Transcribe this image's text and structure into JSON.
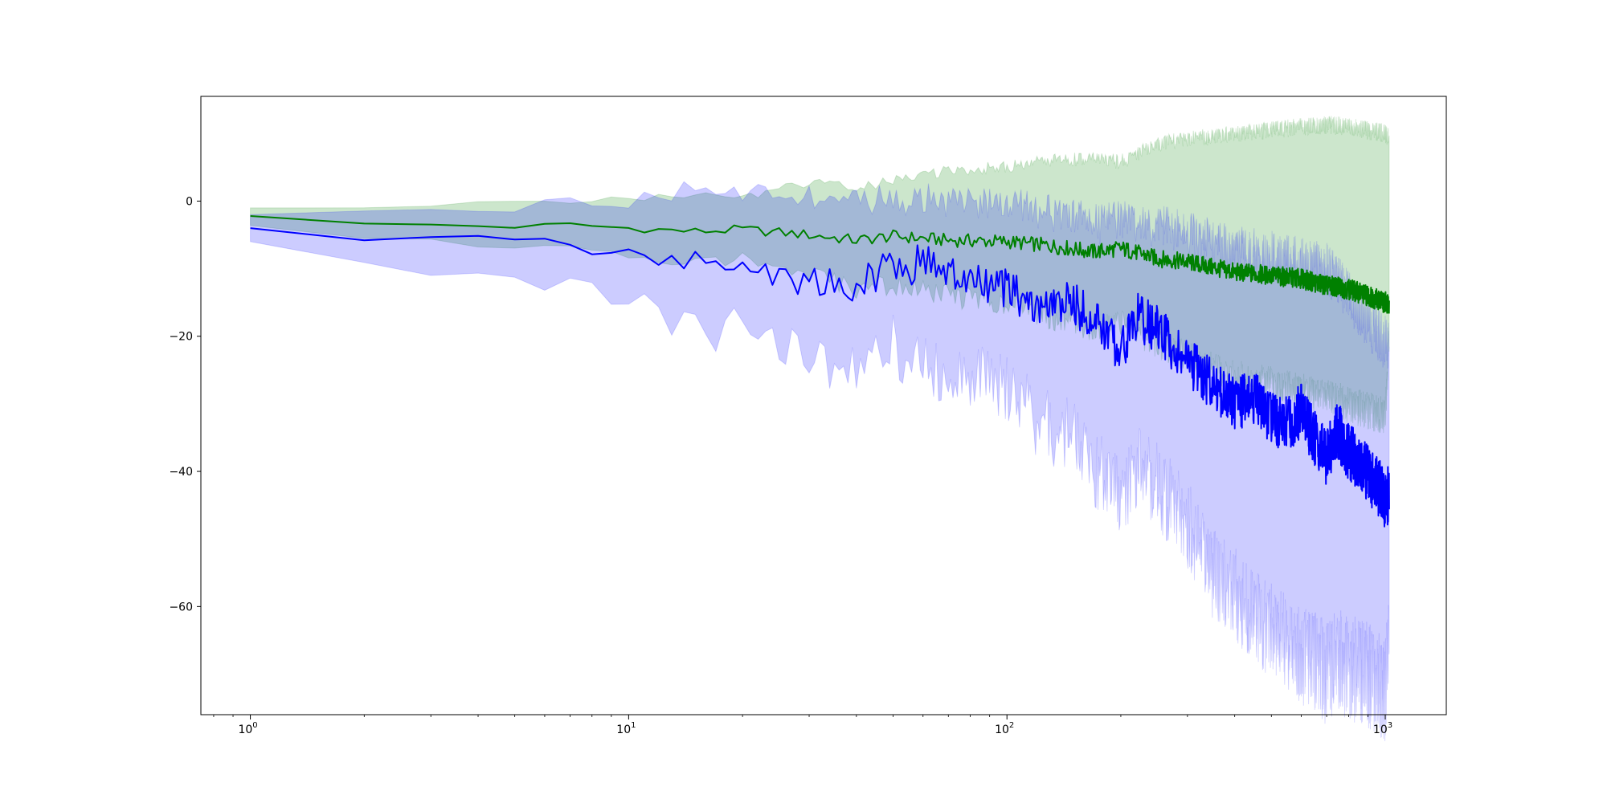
{
  "chart_data": {
    "type": "line",
    "title": "",
    "xlabel": "",
    "ylabel": "",
    "xscale": "log",
    "xlim": [
      0.74,
      1450
    ],
    "ylim": [
      -76,
      15.5
    ],
    "grid": false,
    "legend": "none",
    "x_ticks": [
      {
        "value": 1,
        "base": "10",
        "exp": "0"
      },
      {
        "value": 10,
        "base": "10",
        "exp": "1"
      },
      {
        "value": 100,
        "base": "10",
        "exp": "2"
      },
      {
        "value": 1000,
        "base": "10",
        "exp": "3"
      }
    ],
    "y_ticks": [
      {
        "value": 0,
        "label": "0"
      },
      {
        "value": -20,
        "label": "−20"
      },
      {
        "value": -40,
        "label": "−40"
      },
      {
        "value": -60,
        "label": "−60"
      }
    ],
    "series": [
      {
        "color": "#008000",
        "band_color": "#008000",
        "band_opacity": 0.2,
        "x": [
          1,
          2,
          3,
          5,
          7,
          10,
          15,
          20,
          30,
          40,
          50,
          70,
          100,
          130,
          170,
          200,
          250,
          300,
          400,
          500,
          600,
          700,
          800,
          900,
          1000,
          1024
        ],
        "mean": [
          -2.2,
          -3.4,
          -3.5,
          -3.8,
          -3.5,
          -4.0,
          -4.5,
          -4.2,
          -5.0,
          -5.8,
          -5.2,
          -5.8,
          -6.0,
          -6.6,
          -7.5,
          -7.0,
          -8.5,
          -9.0,
          -10.5,
          -11.0,
          -11.5,
          -12.5,
          -13.0,
          -14.0,
          -15.0,
          -15.0
        ],
        "upper": [
          -1.0,
          -1.1,
          -0.8,
          0.2,
          0.0,
          0.4,
          0.8,
          0.5,
          2.8,
          1.8,
          3.0,
          4.5,
          5.0,
          6.0,
          6.2,
          5.8,
          8.5,
          9.2,
          10.0,
          10.5,
          11.0,
          11.3,
          11.0,
          10.5,
          10.0,
          9.5
        ],
        "lower": [
          -3.6,
          -5.5,
          -6.0,
          -7.5,
          -6.5,
          -7.8,
          -9.0,
          -8.5,
          -11.0,
          -13.0,
          -12.5,
          -14.0,
          -15.0,
          -17.0,
          -19.0,
          -18.0,
          -21.0,
          -23.0,
          -26.0,
          -27.0,
          -28.0,
          -29.0,
          -30.0,
          -31.0,
          -32.0,
          -20.0
        ]
      },
      {
        "color": "#0000ff",
        "band_color": "#0000ff",
        "band_opacity": 0.2,
        "x": [
          1,
          2,
          3,
          5,
          7,
          10,
          12,
          15,
          17,
          20,
          25,
          30,
          40,
          45,
          50,
          55,
          60,
          70,
          80,
          100,
          120,
          150,
          180,
          200,
          220,
          250,
          300,
          350,
          400,
          450,
          500,
          550,
          600,
          650,
          700,
          750,
          800,
          900,
          1000,
          1024
        ],
        "mean": [
          -4.0,
          -5.5,
          -5.6,
          -5.7,
          -6.5,
          -7.5,
          -8.8,
          -9.0,
          -8.8,
          -9.5,
          -11.0,
          -12.0,
          -12.5,
          -11.0,
          -8.5,
          -10.5,
          -8.0,
          -11.0,
          -12.0,
          -13.0,
          -16.0,
          -15.0,
          -19.0,
          -22.0,
          -17.0,
          -19.0,
          -24.0,
          -27.0,
          -30.0,
          -29.0,
          -32.0,
          -33.0,
          -31.0,
          -35.0,
          -38.0,
          -34.0,
          -37.0,
          -40.0,
          -44.0,
          -43.0
        ],
        "upper": [
          -2.0,
          -1.5,
          -1.0,
          -0.8,
          -0.4,
          0.0,
          1.0,
          1.8,
          2.5,
          0.5,
          1.8,
          0.5,
          0.5,
          0.0,
          0.8,
          -0.5,
          0.5,
          -0.2,
          0.0,
          -0.5,
          -1.5,
          -2.5,
          -3.5,
          -2.5,
          -4.0,
          -3.5,
          -4.5,
          -6.0,
          -7.0,
          -7.5,
          -8.0,
          -8.5,
          -9.0,
          -9.5,
          -10.0,
          -12.0,
          -14.0,
          -18.0,
          -21.0,
          -22.0
        ],
        "lower": [
          -6.0,
          -9.5,
          -10.5,
          -12.0,
          -13.5,
          -15.0,
          -17.0,
          -19.0,
          -19.5,
          -19.0,
          -22.0,
          -23.5,
          -24.0,
          -23.0,
          -20.0,
          -27.0,
          -22.0,
          -28.0,
          -26.0,
          -27.0,
          -33.0,
          -35.0,
          -41.0,
          -44.0,
          -39.0,
          -42.0,
          -48.0,
          -55.0,
          -58.0,
          -62.0,
          -63.0,
          -65.0,
          -67.0,
          -68.0,
          -70.0,
          -68.0,
          -69.0,
          -70.0,
          -72.0,
          -66.0
        ]
      }
    ]
  }
}
